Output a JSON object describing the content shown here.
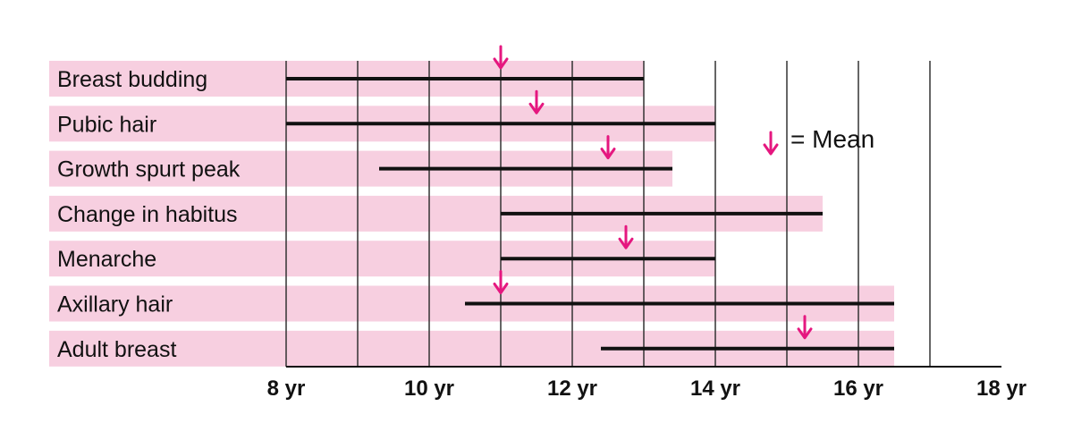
{
  "chart_data": {
    "type": "range-timeline",
    "title": "",
    "xlabel": "",
    "ylabel": "",
    "unit": "yr",
    "xlim": [
      8,
      18
    ],
    "x_ticks": [
      8,
      10,
      12,
      14,
      16,
      18
    ],
    "tick_labels": [
      "8 yr",
      "10 yr",
      "12 yr",
      "14 yr",
      "16 yr",
      "18 yr"
    ],
    "grid_x": [
      8,
      9,
      10,
      11,
      12,
      13,
      14,
      15,
      16,
      17
    ],
    "legend": {
      "label": "= Mean",
      "placement": "right"
    },
    "colors": {
      "band": "#f7cfe0",
      "range_bar": "#111111",
      "mean_arrow": "#e5177f",
      "grid": "#333333"
    },
    "rows": [
      {
        "label": "Breast budding",
        "band_end": 13,
        "start": 8,
        "end": 13,
        "mean": 11
      },
      {
        "label": "Pubic hair",
        "band_end": 14,
        "start": 8,
        "end": 14,
        "mean": 11.5
      },
      {
        "label": "Growth spurt peak",
        "band_end": 13.4,
        "start": 9.3,
        "end": 13.4,
        "mean": 12.5
      },
      {
        "label": "Change in habitus",
        "band_end": 15.5,
        "start": 11,
        "end": 15.5,
        "mean": null
      },
      {
        "label": "Menarche",
        "band_end": 14,
        "start": 11,
        "end": 14,
        "mean": 12.75
      },
      {
        "label": "Axillary hair",
        "band_end": 16.5,
        "start": 10.5,
        "end": 16.5,
        "mean": 11
      },
      {
        "label": "Adult breast",
        "band_end": 16.5,
        "start": 12.4,
        "end": 16.5,
        "mean": 15.25
      }
    ]
  }
}
